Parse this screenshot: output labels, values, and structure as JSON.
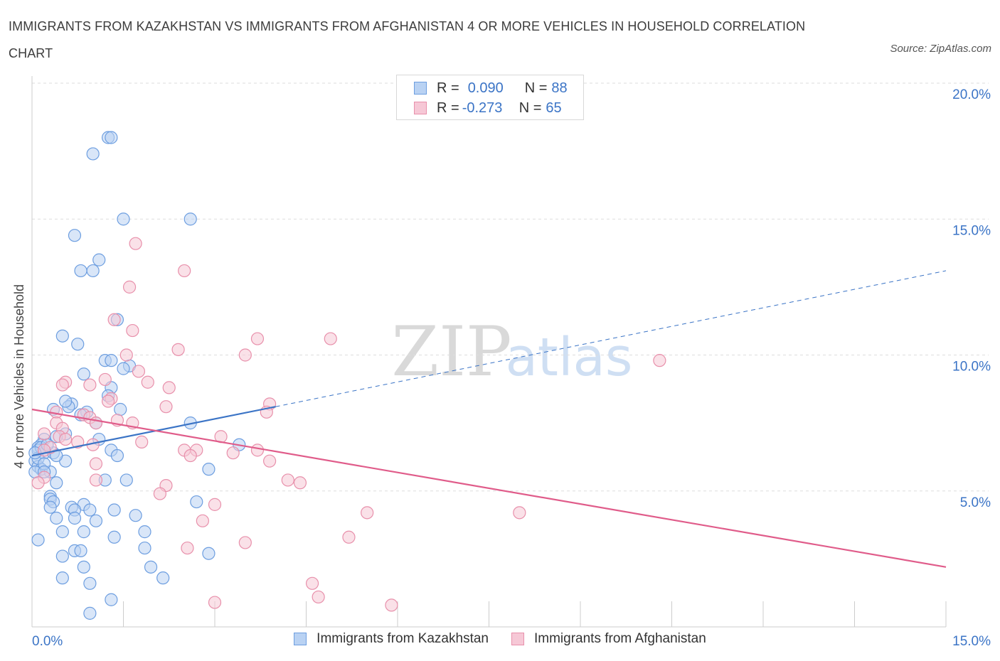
{
  "title": "IMMIGRANTS FROM KAZAKHSTAN VS IMMIGRANTS FROM AFGHANISTAN 4 OR MORE VEHICLES IN HOUSEHOLD CORRELATION CHART",
  "source": "Source: ZipAtlas.com",
  "watermark": {
    "zip": "ZIP",
    "atlas": "atlas"
  },
  "legend_top": {
    "rows": [
      {
        "r_label": "R = ",
        "r_value": "0.090",
        "n_label": "N = ",
        "n_value": "88"
      },
      {
        "r_label": "R = ",
        "r_value": "-0.273",
        "n_label": "N = ",
        "n_value": "65"
      }
    ]
  },
  "colors": {
    "blue_fill": "#b9d2f3",
    "blue_stroke": "#6d9ee0",
    "blue_line": "#3b74c6",
    "pink_fill": "#f6c8d6",
    "pink_stroke": "#e890ab",
    "pink_line": "#e05c8a",
    "tick_label": "#3b74c6",
    "grid": "#dddddd"
  },
  "chart_data": {
    "type": "scatter",
    "title": "IMMIGRANTS FROM KAZAKHSTAN VS IMMIGRANTS FROM AFGHANISTAN 4 OR MORE VEHICLES IN HOUSEHOLD CORRELATION CHART",
    "xlabel": "",
    "ylabel": "4 or more Vehicles in Household",
    "xlim": [
      0,
      15
    ],
    "ylim": [
      0,
      20
    ],
    "x_tick_labels": [
      {
        "value": 0,
        "label": "0.0%"
      },
      {
        "value": 15,
        "label": "15.0%"
      }
    ],
    "y_tick_labels": [
      {
        "value": 5,
        "label": "5.0%"
      },
      {
        "value": 10,
        "label": "10.0%"
      },
      {
        "value": 15,
        "label": "15.0%"
      },
      {
        "value": 20,
        "label": "20.0%"
      }
    ],
    "grid": true,
    "legend_position": "bottom",
    "series": [
      {
        "name": "Immigrants from Kazakhstan",
        "color": "#6d9ee0",
        "R": 0.09,
        "N": 88,
        "trend": {
          "x0": 0,
          "y0": 6.3,
          "x1": 4.0,
          "y1": 8.1,
          "dashed_to_x": 15.0,
          "dashed_to_y": 13.1
        },
        "points": [
          [
            1.25,
            18.0
          ],
          [
            1.3,
            18.0
          ],
          [
            1.0,
            17.4
          ],
          [
            1.5,
            15.0
          ],
          [
            2.6,
            15.0
          ],
          [
            0.7,
            14.4
          ],
          [
            1.1,
            13.5
          ],
          [
            0.8,
            13.1
          ],
          [
            1.0,
            13.1
          ],
          [
            1.4,
            11.3
          ],
          [
            0.5,
            10.7
          ],
          [
            0.75,
            10.4
          ],
          [
            1.2,
            9.8
          ],
          [
            1.6,
            9.6
          ],
          [
            1.5,
            9.5
          ],
          [
            0.85,
            9.3
          ],
          [
            1.3,
            9.8
          ],
          [
            1.3,
            8.8
          ],
          [
            1.25,
            8.5
          ],
          [
            0.65,
            8.2
          ],
          [
            0.6,
            8.1
          ],
          [
            0.55,
            8.3
          ],
          [
            1.45,
            8.0
          ],
          [
            0.35,
            8.0
          ],
          [
            0.9,
            7.9
          ],
          [
            0.8,
            7.8
          ],
          [
            1.05,
            7.5
          ],
          [
            2.6,
            7.5
          ],
          [
            0.55,
            7.1
          ],
          [
            0.4,
            7.0
          ],
          [
            0.2,
            6.9
          ],
          [
            1.1,
            6.9
          ],
          [
            3.4,
            6.7
          ],
          [
            0.15,
            6.7
          ],
          [
            0.1,
            6.6
          ],
          [
            1.3,
            6.5
          ],
          [
            0.1,
            6.5
          ],
          [
            0.2,
            6.4
          ],
          [
            0.35,
            6.4
          ],
          [
            1.4,
            6.3
          ],
          [
            0.55,
            6.1
          ],
          [
            0.05,
            6.1
          ],
          [
            0.1,
            5.9
          ],
          [
            0.15,
            5.8
          ],
          [
            2.9,
            5.8
          ],
          [
            0.05,
            5.7
          ],
          [
            0.3,
            5.7
          ],
          [
            1.2,
            5.4
          ],
          [
            1.55,
            5.4
          ],
          [
            0.4,
            5.3
          ],
          [
            0.3,
            4.8
          ],
          [
            0.3,
            4.7
          ],
          [
            0.35,
            4.6
          ],
          [
            2.7,
            4.6
          ],
          [
            0.85,
            4.5
          ],
          [
            0.3,
            4.4
          ],
          [
            0.65,
            4.4
          ],
          [
            0.95,
            4.3
          ],
          [
            0.7,
            4.3
          ],
          [
            1.35,
            4.3
          ],
          [
            1.7,
            4.1
          ],
          [
            0.4,
            4.0
          ],
          [
            0.7,
            4.0
          ],
          [
            1.05,
            3.9
          ],
          [
            0.5,
            3.5
          ],
          [
            0.85,
            3.5
          ],
          [
            1.85,
            3.5
          ],
          [
            0.1,
            3.2
          ],
          [
            1.35,
            3.3
          ],
          [
            1.85,
            2.9
          ],
          [
            0.7,
            2.8
          ],
          [
            0.8,
            2.8
          ],
          [
            0.5,
            2.6
          ],
          [
            2.9,
            2.7
          ],
          [
            0.85,
            2.2
          ],
          [
            1.95,
            2.2
          ],
          [
            0.5,
            1.8
          ],
          [
            2.15,
            1.8
          ],
          [
            0.95,
            1.6
          ],
          [
            1.3,
            1.0
          ],
          [
            0.95,
            0.5
          ],
          [
            0.1,
            6.2
          ],
          [
            0.2,
            6.0
          ],
          [
            0.15,
            6.6
          ],
          [
            0.05,
            6.4
          ],
          [
            0.25,
            6.7
          ],
          [
            0.2,
            5.7
          ],
          [
            0.4,
            6.3
          ]
        ]
      },
      {
        "name": "Immigrants from Afghanistan",
        "color": "#e890ab",
        "R": -0.273,
        "N": 65,
        "trend": {
          "x0": 0,
          "y0": 8.0,
          "x1": 15.0,
          "y1": 2.2
        },
        "points": [
          [
            1.7,
            14.1
          ],
          [
            2.5,
            13.1
          ],
          [
            1.6,
            12.5
          ],
          [
            1.35,
            11.3
          ],
          [
            1.65,
            10.9
          ],
          [
            3.7,
            10.6
          ],
          [
            4.9,
            10.6
          ],
          [
            2.4,
            10.2
          ],
          [
            1.55,
            10.0
          ],
          [
            3.5,
            10.0
          ],
          [
            10.3,
            9.8
          ],
          [
            1.75,
            9.4
          ],
          [
            1.2,
            9.1
          ],
          [
            1.9,
            9.0
          ],
          [
            0.55,
            9.0
          ],
          [
            0.5,
            8.9
          ],
          [
            0.95,
            8.9
          ],
          [
            2.25,
            8.8
          ],
          [
            1.3,
            8.4
          ],
          [
            3.9,
            8.2
          ],
          [
            2.2,
            8.1
          ],
          [
            1.25,
            8.3
          ],
          [
            0.4,
            7.9
          ],
          [
            0.85,
            7.8
          ],
          [
            0.95,
            7.7
          ],
          [
            3.85,
            7.9
          ],
          [
            1.4,
            7.6
          ],
          [
            1.05,
            7.5
          ],
          [
            0.4,
            7.5
          ],
          [
            1.65,
            7.5
          ],
          [
            0.5,
            7.3
          ],
          [
            3.1,
            7.0
          ],
          [
            0.45,
            7.0
          ],
          [
            0.2,
            7.1
          ],
          [
            0.55,
            6.9
          ],
          [
            1.8,
            6.8
          ],
          [
            0.75,
            6.8
          ],
          [
            1.0,
            6.7
          ],
          [
            0.3,
            6.6
          ],
          [
            0.2,
            6.5
          ],
          [
            2.5,
            6.5
          ],
          [
            2.7,
            6.5
          ],
          [
            3.7,
            6.5
          ],
          [
            3.3,
            6.4
          ],
          [
            2.6,
            6.3
          ],
          [
            1.05,
            6.0
          ],
          [
            3.9,
            6.1
          ],
          [
            0.2,
            5.5
          ],
          [
            1.05,
            5.4
          ],
          [
            4.2,
            5.4
          ],
          [
            4.4,
            5.3
          ],
          [
            2.2,
            5.2
          ],
          [
            2.1,
            4.9
          ],
          [
            3.0,
            4.5
          ],
          [
            5.5,
            4.2
          ],
          [
            8.0,
            4.2
          ],
          [
            2.8,
            3.9
          ],
          [
            5.2,
            3.3
          ],
          [
            3.5,
            3.1
          ],
          [
            2.55,
            2.9
          ],
          [
            4.6,
            1.6
          ],
          [
            4.7,
            1.1
          ],
          [
            3.0,
            0.9
          ],
          [
            5.9,
            0.8
          ],
          [
            0.1,
            5.3
          ]
        ]
      }
    ]
  }
}
